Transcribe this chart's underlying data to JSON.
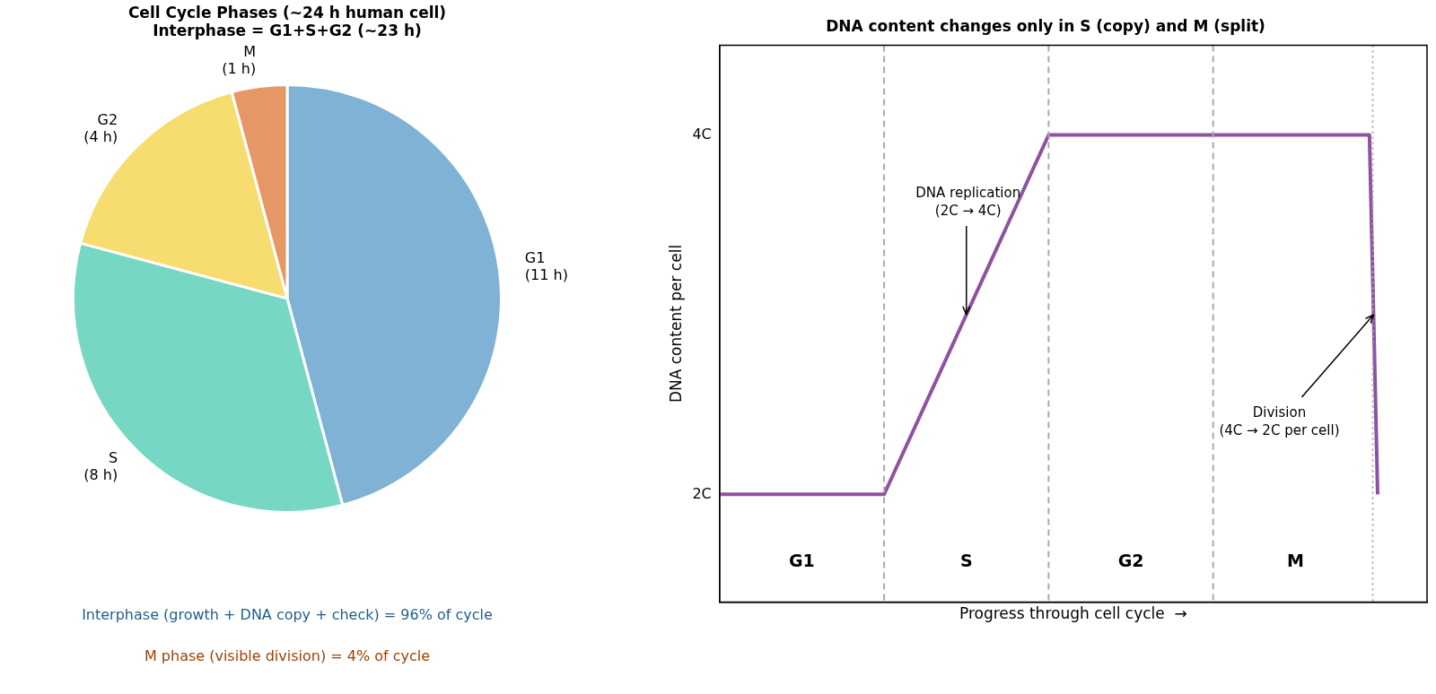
{
  "chart_data": [
    {
      "type": "pie",
      "title": "Cell Cycle Phases (~24 h human cell)\nInterphase = G1+S+G2 (~23 h)",
      "categories": [
        "G1",
        "S",
        "G2",
        "M"
      ],
      "values": [
        11,
        8,
        4,
        1
      ],
      "value_labels": [
        "(11 h)",
        "(8 h)",
        "(4 h)",
        "(1 h)"
      ],
      "colors": [
        "#7fb2d5",
        "#76d7c4",
        "#f7dc6f",
        "#e59866"
      ],
      "legend": false,
      "annotations": [
        "Interphase (growth + DNA copy + check) = 96% of cycle",
        "M phase (visible division) = 4% of cycle"
      ]
    },
    {
      "type": "line",
      "title": "DNA content changes only in S (copy) and M (split)",
      "xlabel": "Progress through cell cycle  →",
      "ylabel": "DNA content per cell",
      "categories": [
        null,
        null,
        null,
        null,
        null,
        null,
        null,
        null,
        null,
        null,
        null,
        null,
        null,
        null,
        null,
        null,
        null,
        null,
        null,
        null,
        null,
        null,
        null,
        null,
        null,
        null,
        null,
        null,
        null,
        null,
        null,
        null,
        null,
        null,
        null,
        null,
        null,
        null,
        null,
        null,
        null,
        null,
        null,
        null,
        null,
        null,
        null,
        null,
        null,
        null,
        null,
        null,
        null,
        null,
        null,
        null,
        null,
        null,
        null,
        null,
        null,
        null,
        null,
        null,
        null,
        null,
        null,
        null,
        null,
        null,
        null,
        null,
        null,
        null,
        null,
        null,
        null,
        null,
        null,
        null,
        null,
        null,
        null,
        null,
        null,
        null,
        null
      ],
      "series": [
        {
          "color": "#8e52a1",
          "values": [
            2,
            2,
            2,
            2,
            2,
            2,
            2,
            2,
            2,
            2,
            2,
            2,
            2,
            2,
            2,
            2,
            2,
            2,
            2,
            2,
            2,
            2.1,
            2.2,
            2.3,
            2.4,
            2.5,
            2.6,
            2.7,
            2.8,
            2.9,
            3,
            3.1,
            3.2,
            3.3,
            3.4,
            3.5,
            3.6,
            3.7,
            3.8,
            3.9,
            4,
            4,
            4,
            4,
            4,
            4,
            4,
            4,
            4,
            4,
            4,
            4,
            4,
            4,
            4,
            4,
            4,
            4,
            4,
            4,
            4,
            4,
            4,
            4,
            4,
            4,
            4,
            4,
            4,
            4,
            4,
            4,
            4,
            4,
            4,
            4,
            4,
            4,
            4,
            4,
            2,
            null,
            null,
            null,
            null,
            null,
            null
          ]
        }
      ],
      "ylim": [
        1.4,
        4.5
      ],
      "yticks": [
        {
          "value": 2,
          "label": "2C"
        },
        {
          "value": 4,
          "label": "4C"
        }
      ],
      "tick_labels": "y",
      "grid": "x",
      "legend": false,
      "marker": "none",
      "line_style": "solid",
      "annotations": [
        "G1",
        "S",
        "G2",
        "M",
        "DNA replication\n(2C → 4C)",
        "Division\n(4C → 2C per cell)"
      ]
    }
  ]
}
